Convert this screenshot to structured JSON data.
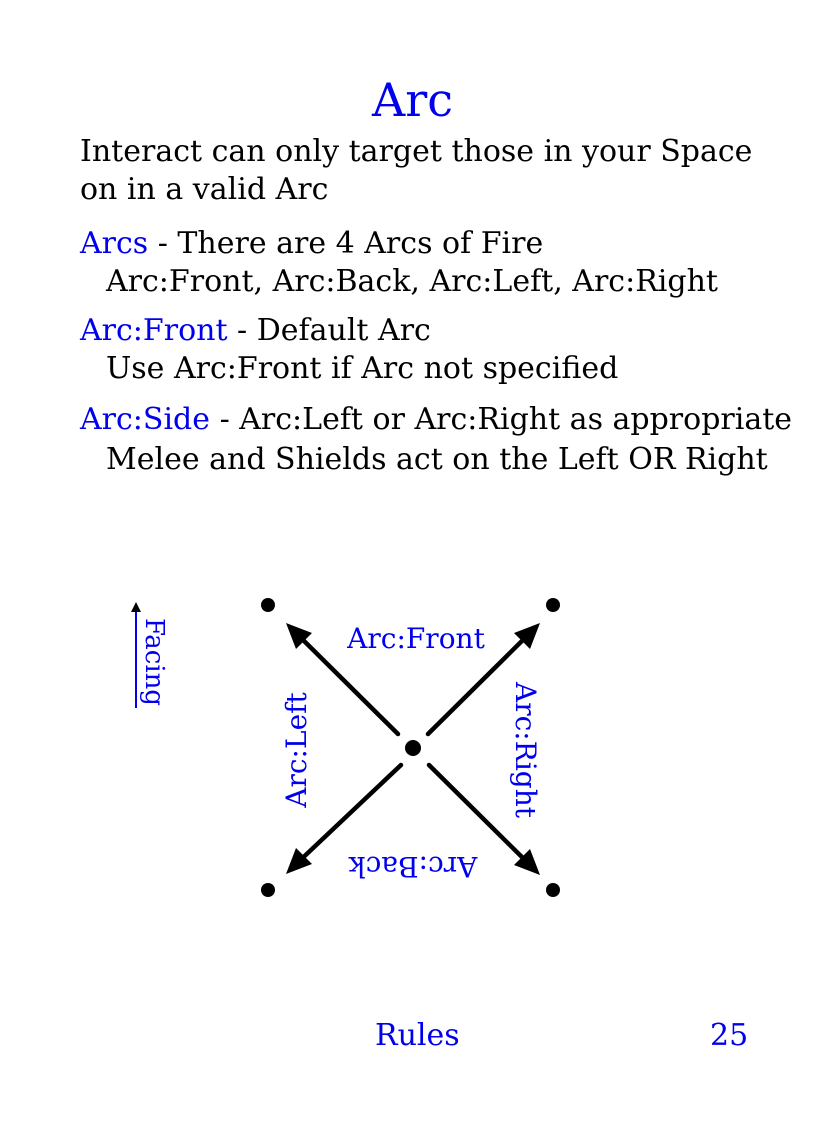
{
  "title": "Arc",
  "intro": {
    "line1": "Interact can only target those in your Space",
    "line2": "on in a valid Arc"
  },
  "terms": [
    {
      "term": "Arcs",
      "definition": " - There are 4 Arcs of Fire",
      "detail": "Arc:Front, Arc:Back, Arc:Left, Arc:Right"
    },
    {
      "term": "Arc:Front",
      "definition": " - Default Arc",
      "detail": "Use Arc:Front if Arc not specified"
    },
    {
      "term": "Arc:Side",
      "definition": " - Arc:Left or Arc:Right as appropriate",
      "detail": "Melee and Shields act on the Left OR Right"
    }
  ],
  "diagram": {
    "facing_label": "Facing",
    "front_label": "Arc:Front",
    "back_label": "Arc:Back",
    "left_label": "Arc:Left",
    "right_label": "Arc:Right"
  },
  "footer": {
    "section": "Rules",
    "page_number": "25"
  },
  "colors": {
    "accent": "#0000ee",
    "text": "#000000"
  }
}
